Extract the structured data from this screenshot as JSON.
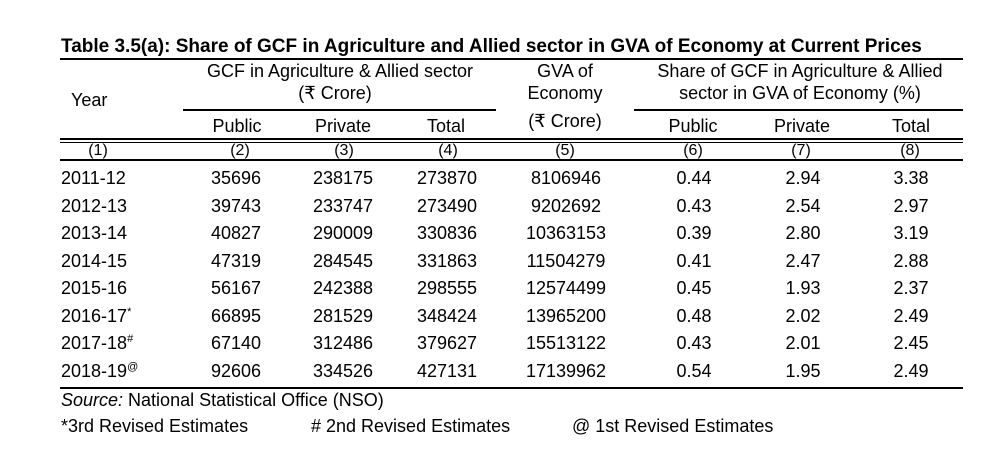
{
  "table": {
    "title": "Table 3.5(a): Share of GCF in Agriculture and Allied sector in GVA of Economy at Current Prices",
    "headers": {
      "year": "Year",
      "gcf_group_line1": "GCF in Agriculture & Allied sector",
      "gcf_group_line2": "(₹ Crore)",
      "gva_line1": "GVA of",
      "gva_line2": "Economy",
      "gva_line3": "(₹ Crore)",
      "share_group_line1": "Share of GCF in Agriculture & Allied",
      "share_group_line2": "sector in GVA of Economy (%)",
      "public": "Public",
      "private": "Private",
      "total": "Total",
      "public2": "Public",
      "private2": "Private",
      "total2": "Total"
    },
    "column_numbers": [
      "(1)",
      "(2)",
      "(3)",
      "(4)",
      "(5)",
      "(6)",
      "(7)",
      "(8)"
    ],
    "rows": [
      {
        "year": "2011-12",
        "mark": "",
        "public": "35696",
        "private": "238175",
        "total": "273870",
        "gva": "8106946",
        "s_public": "0.44",
        "s_private": "2.94",
        "s_total": "3.38"
      },
      {
        "year": "2012-13",
        "mark": "",
        "public": "39743",
        "private": "233747",
        "total": "273490",
        "gva": "9202692",
        "s_public": "0.43",
        "s_private": "2.54",
        "s_total": "2.97"
      },
      {
        "year": "2013-14",
        "mark": "",
        "public": "40827",
        "private": "290009",
        "total": "330836",
        "gva": "10363153",
        "s_public": "0.39",
        "s_private": "2.80",
        "s_total": "3.19"
      },
      {
        "year": "2014-15",
        "mark": "",
        "public": "47319",
        "private": "284545",
        "total": "331863",
        "gva": "11504279",
        "s_public": "0.41",
        "s_private": "2.47",
        "s_total": "2.88"
      },
      {
        "year": "2015-16",
        "mark": "",
        "public": "56167",
        "private": "242388",
        "total": "298555",
        "gva": "12574499",
        "s_public": "0.45",
        "s_private": "1.93",
        "s_total": "2.37"
      },
      {
        "year": "2016-17",
        "mark": "*",
        "public": "66895",
        "private": "281529",
        "total": "348424",
        "gva": "13965200",
        "s_public": "0.48",
        "s_private": "2.02",
        "s_total": "2.49"
      },
      {
        "year": "2017-18",
        "mark": "#",
        "public": "67140",
        "private": "312486",
        "total": "379627",
        "gva": "15513122",
        "s_public": "0.43",
        "s_private": "2.01",
        "s_total": "2.45"
      },
      {
        "year": "2018-19",
        "mark": "@",
        "public": "92606",
        "private": "334526",
        "total": "427131",
        "gva": "17139962",
        "s_public": "0.54",
        "s_private": "1.95",
        "s_total": "2.49"
      }
    ],
    "footer": {
      "source_label": "Source:",
      "source_text": " National Statistical Office (NSO)",
      "note1": "*3rd Revised Estimates",
      "note2": "# 2nd Revised Estimates",
      "note3": "@ 1st Revised Estimates"
    }
  }
}
